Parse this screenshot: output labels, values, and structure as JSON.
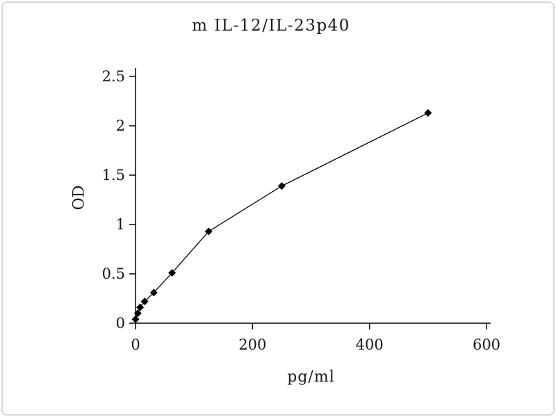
{
  "chart": {
    "title": "m IL-12/IL-23p40",
    "xlabel": "pg/ml",
    "ylabel": "OD"
  },
  "chart_data": {
    "type": "line",
    "title": "m IL-12/IL-23p40",
    "xlabel": "pg/ml",
    "ylabel": "OD",
    "x": [
      0,
      3.9,
      7.8,
      15.6,
      31.2,
      62.5,
      125,
      250,
      500
    ],
    "y": [
      0.04,
      0.1,
      0.16,
      0.22,
      0.31,
      0.51,
      0.93,
      1.39,
      2.13
    ],
    "xlim": [
      0,
      600
    ],
    "ylim": [
      0,
      2.5
    ],
    "x_ticks": [
      0,
      200,
      400,
      600
    ],
    "x_tick_labels": [
      "0",
      "200",
      "400",
      "600"
    ],
    "y_ticks": [
      0,
      0.5,
      1,
      1.5,
      2,
      2.5
    ],
    "y_tick_labels": [
      "0",
      "0.5",
      "1",
      "1.5",
      "2",
      "2.5"
    ],
    "marker": "diamond",
    "line_color": "#000000",
    "marker_color": "#000000",
    "grid": false,
    "legend": null
  }
}
